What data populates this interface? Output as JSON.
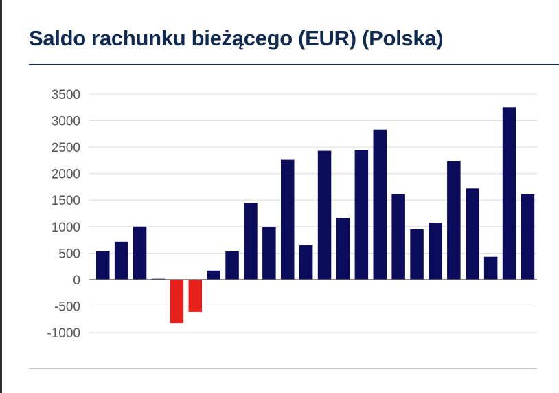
{
  "title": "Saldo rachunku bieżącego (EUR) (Polska)",
  "colors": {
    "title": "#0f2a52",
    "positive": "#0c0c5c",
    "negative": "#e8201c",
    "grid": "#dcdcdc",
    "tick_text": "#555555"
  },
  "chart_data": {
    "type": "bar",
    "title": "",
    "xlabel": "",
    "ylabel": "",
    "ylim": [
      -1000,
      3500
    ],
    "yticks": [
      3500,
      3000,
      2500,
      2000,
      1500,
      1000,
      500,
      0,
      -500,
      -1000
    ],
    "grid": true,
    "legend": "none",
    "values": [
      530,
      715,
      1000,
      15,
      -820,
      -610,
      170,
      530,
      1450,
      990,
      2260,
      650,
      2430,
      1160,
      2450,
      2830,
      1615,
      945,
      1070,
      2230,
      1720,
      430,
      3250,
      1615
    ]
  }
}
